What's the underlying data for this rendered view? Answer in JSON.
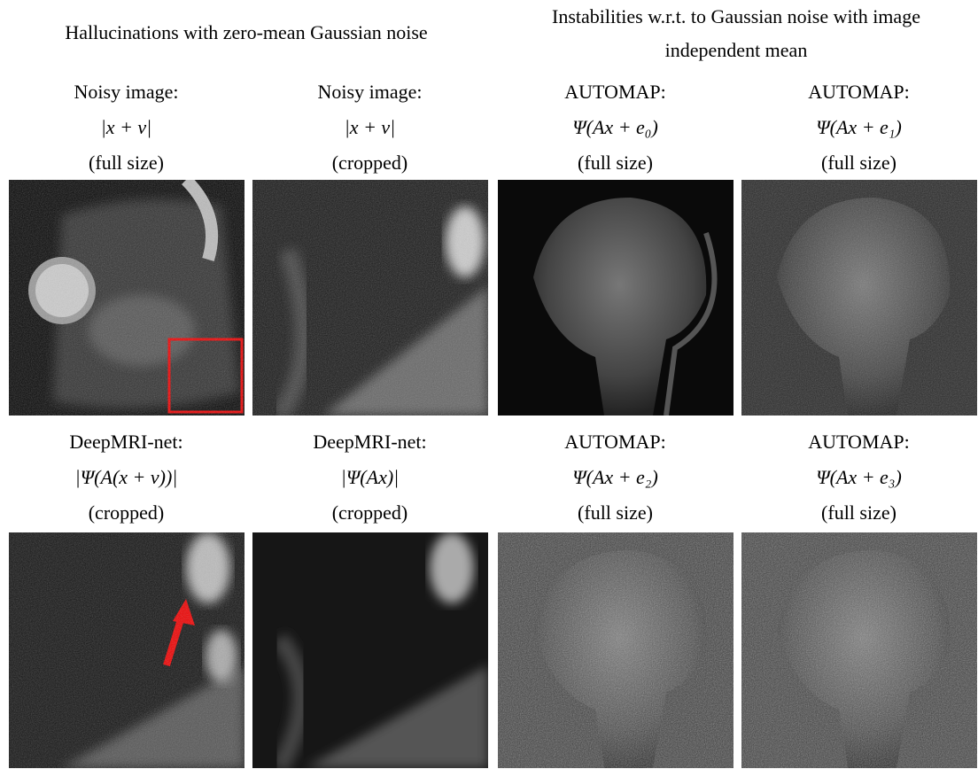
{
  "header": {
    "left": "Hallucinations with zero-mean Gaussian noise",
    "right": "Instabilities w.r.t. to Gaussian noise with image independent mean"
  },
  "panels": [
    {
      "lines": [
        "Noisy image:",
        "|x + v|",
        "(full size)"
      ]
    },
    {
      "lines": [
        "Noisy image:",
        "|x + v|",
        "(cropped)"
      ]
    },
    {
      "lines": [
        "AUTOMAP:",
        "Ψ(Ax + e₀)",
        "(full size)"
      ]
    },
    {
      "lines": [
        "AUTOMAP:",
        "Ψ(Ax + e₁)",
        "(full size)"
      ]
    },
    {
      "lines": [
        "DeepMRI-net:",
        "|Ψ(A(x + v))|",
        "(cropped)"
      ]
    },
    {
      "lines": [
        "DeepMRI-net:",
        "|Ψ(Ax)|",
        "(cropped)"
      ]
    },
    {
      "lines": [
        "AUTOMAP:",
        "Ψ(Ax + e₂)",
        "(full size)"
      ]
    },
    {
      "lines": [
        "AUTOMAP:",
        "Ψ(Ax + e₃)",
        "(full size)"
      ]
    }
  ]
}
